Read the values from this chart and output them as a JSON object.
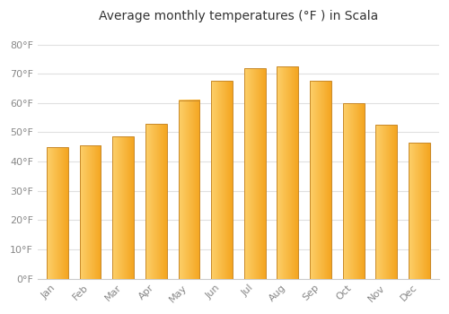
{
  "title": "Average monthly temperatures (°F ) in Scala",
  "months": [
    "Jan",
    "Feb",
    "Mar",
    "Apr",
    "May",
    "Jun",
    "Jul",
    "Aug",
    "Sep",
    "Oct",
    "Nov",
    "Dec"
  ],
  "values": [
    45,
    45.5,
    48.5,
    53,
    61,
    67.5,
    72,
    72.5,
    67.5,
    60,
    52.5,
    46.5
  ],
  "bar_color_left": "#FDD06A",
  "bar_color_right": "#F4A520",
  "bar_border_color": "#C8892A",
  "yticks": [
    0,
    10,
    20,
    30,
    40,
    50,
    60,
    70,
    80
  ],
  "ytick_labels": [
    "0°F",
    "10°F",
    "20°F",
    "30°F",
    "40°F",
    "50°F",
    "60°F",
    "70°F",
    "80°F"
  ],
  "ylim": [
    0,
    85
  ],
  "background_color": "#ffffff",
  "plot_bg_color": "#ffffff",
  "grid_color": "#e0e0e0",
  "title_fontsize": 10,
  "tick_fontsize": 8,
  "tick_color": "#888888",
  "title_color": "#333333"
}
